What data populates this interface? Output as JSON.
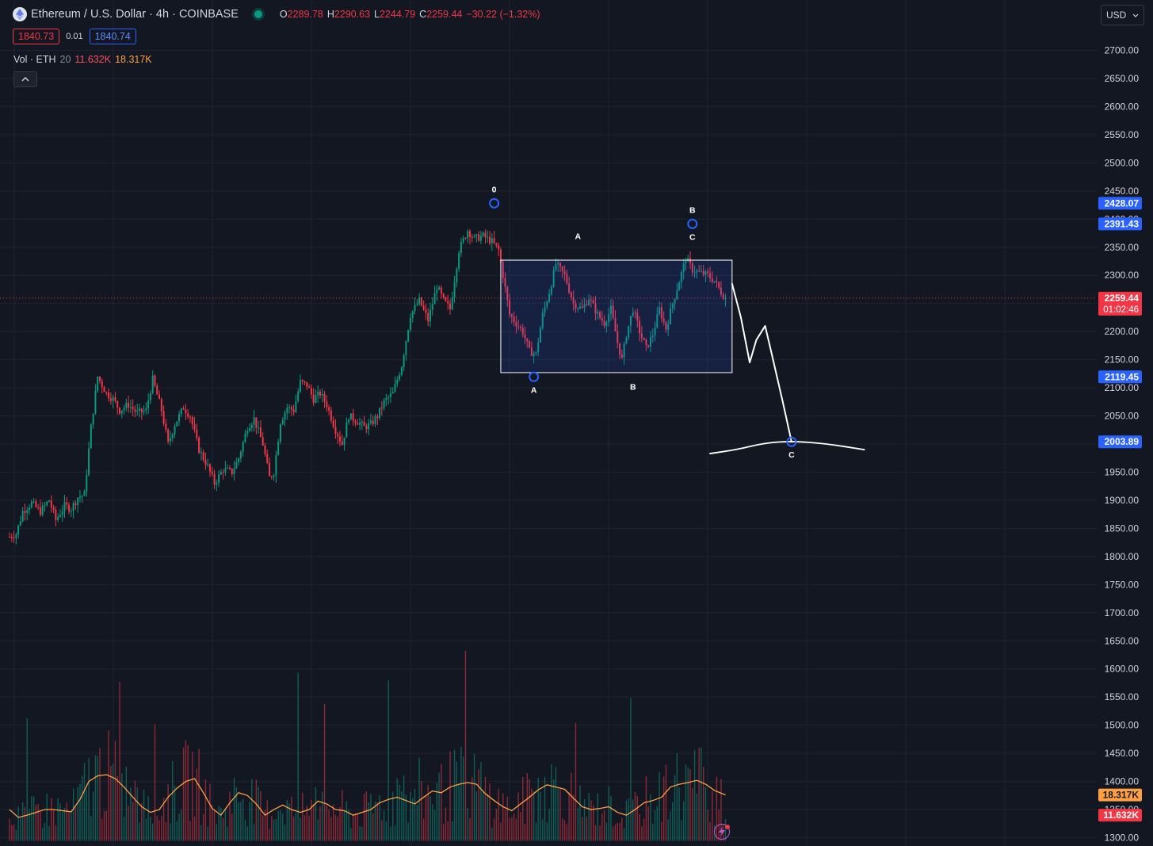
{
  "header": {
    "symbol_title": "Ethereum / U.S. Dollar · 4h · COINBASE",
    "ohlc": {
      "o_label": "O",
      "o_value": "2289.78",
      "h_label": "H",
      "h_value": "2290.63",
      "l_label": "L",
      "l_value": "2244.79",
      "c_label": "C",
      "c_value": "2259.44",
      "change": "−30.22 (−1.32%)"
    },
    "bid": "1840.73",
    "spread": "0.01",
    "ask": "1840.74",
    "currency": "USD"
  },
  "volume_legend": {
    "label": "Vol · ETH",
    "length": "20",
    "volume": "11.632K",
    "ma": "18.317K"
  },
  "colors": {
    "background": "#131722",
    "grid": "#1f2330",
    "up": "#089981",
    "down": "#f23645",
    "volume_ma": "#ff9f43",
    "accent": "#2962ff",
    "drawing": "#ffffff"
  },
  "chart_data": {
    "type": "candlestick",
    "y_ticks": [
      "2700.00",
      "2650.00",
      "2600.00",
      "2550.00",
      "2500.00",
      "2450.00",
      "2400.00",
      "2350.00",
      "2300.00",
      "2250.00",
      "2200.00",
      "2150.00",
      "2100.00",
      "2050.00",
      "2000.00",
      "1950.00",
      "1900.00",
      "1850.00",
      "1800.00",
      "1750.00",
      "1700.00",
      "1650.00",
      "1600.00",
      "1550.00",
      "1500.00",
      "1450.00",
      "1400.00",
      "1350.00",
      "1300.00"
    ],
    "ylim": [
      1300,
      2700
    ],
    "price_path": [
      [
        0,
        1835
      ],
      [
        3,
        1840
      ],
      [
        6,
        1880
      ],
      [
        10,
        1895
      ],
      [
        14,
        1880
      ],
      [
        18,
        1900
      ],
      [
        21,
        1865
      ],
      [
        25,
        1890
      ],
      [
        28,
        1885
      ],
      [
        31,
        1905
      ],
      [
        34,
        1910
      ],
      [
        37,
        2030
      ],
      [
        40,
        2120
      ],
      [
        44,
        2090
      ],
      [
        47,
        2080
      ],
      [
        50,
        2060
      ],
      [
        54,
        2070
      ],
      [
        58,
        2055
      ],
      [
        62,
        2060
      ],
      [
        65,
        2115
      ],
      [
        69,
        2060
      ],
      [
        72,
        2000
      ],
      [
        75,
        2035
      ],
      [
        79,
        2065
      ],
      [
        82,
        2050
      ],
      [
        86,
        1990
      ],
      [
        90,
        1960
      ],
      [
        93,
        1930
      ],
      [
        97,
        1955
      ],
      [
        101,
        1950
      ],
      [
        104,
        1975
      ],
      [
        108,
        2030
      ],
      [
        111,
        2045
      ],
      [
        115,
        2000
      ],
      [
        118,
        1940
      ],
      [
        120,
        1950
      ],
      [
        123,
        2040
      ],
      [
        126,
        2065
      ],
      [
        129,
        2060
      ],
      [
        132,
        2110
      ],
      [
        135,
        2105
      ],
      [
        138,
        2080
      ],
      [
        141,
        2090
      ],
      [
        144,
        2070
      ],
      [
        148,
        2025
      ],
      [
        151,
        2000
      ],
      [
        154,
        2050
      ],
      [
        158,
        2040
      ],
      [
        161,
        2030
      ],
      [
        164,
        2035
      ],
      [
        167,
        2050
      ],
      [
        170,
        2075
      ],
      [
        174,
        2090
      ],
      [
        178,
        2140
      ],
      [
        182,
        2230
      ],
      [
        186,
        2255
      ],
      [
        190,
        2220
      ],
      [
        194,
        2280
      ],
      [
        197,
        2255
      ],
      [
        200,
        2240
      ],
      [
        204,
        2345
      ],
      [
        208,
        2380
      ],
      [
        211,
        2365
      ],
      [
        215,
        2370
      ],
      [
        219,
        2360
      ],
      [
        222,
        2345
      ],
      [
        224,
        2300
      ],
      [
        227,
        2230
      ],
      [
        230,
        2215
      ],
      [
        233,
        2200
      ],
      [
        236,
        2165
      ],
      [
        239,
        2160
      ],
      [
        242,
        2230
      ],
      [
        245,
        2270
      ],
      [
        248,
        2320
      ],
      [
        252,
        2300
      ],
      [
        256,
        2250
      ],
      [
        260,
        2240
      ],
      [
        263,
        2260
      ],
      [
        267,
        2230
      ],
      [
        270,
        2215
      ],
      [
        273,
        2240
      ],
      [
        276,
        2180
      ],
      [
        278,
        2150
      ],
      [
        280,
        2195
      ],
      [
        283,
        2240
      ],
      [
        286,
        2200
      ],
      [
        289,
        2170
      ],
      [
        292,
        2195
      ],
      [
        295,
        2240
      ],
      [
        298,
        2205
      ],
      [
        301,
        2250
      ],
      [
        304,
        2290
      ],
      [
        307,
        2330
      ],
      [
        310,
        2310
      ],
      [
        313,
        2305
      ],
      [
        317,
        2300
      ],
      [
        320,
        2290
      ],
      [
        323,
        2270
      ],
      [
        325,
        2259.44
      ]
    ],
    "volume_ma": [
      [
        0,
        1350
      ],
      [
        4,
        1336
      ],
      [
        8,
        1340
      ],
      [
        12,
        1345
      ],
      [
        16,
        1350
      ],
      [
        20,
        1350
      ],
      [
        24,
        1348
      ],
      [
        28,
        1346
      ],
      [
        32,
        1368
      ],
      [
        36,
        1400
      ],
      [
        40,
        1410
      ],
      [
        44,
        1412
      ],
      [
        48,
        1405
      ],
      [
        52,
        1390
      ],
      [
        56,
        1372
      ],
      [
        60,
        1355
      ],
      [
        64,
        1345
      ],
      [
        68,
        1350
      ],
      [
        72,
        1372
      ],
      [
        76,
        1388
      ],
      [
        80,
        1400
      ],
      [
        84,
        1405
      ],
      [
        88,
        1380
      ],
      [
        92,
        1352
      ],
      [
        96,
        1340
      ],
      [
        100,
        1362
      ],
      [
        104,
        1380
      ],
      [
        108,
        1375
      ],
      [
        112,
        1360
      ],
      [
        116,
        1340
      ],
      [
        120,
        1350
      ],
      [
        124,
        1358
      ],
      [
        128,
        1350
      ],
      [
        132,
        1345
      ],
      [
        136,
        1350
      ],
      [
        140,
        1365
      ],
      [
        144,
        1360
      ],
      [
        148,
        1350
      ],
      [
        152,
        1348
      ],
      [
        156,
        1340
      ],
      [
        160,
        1345
      ],
      [
        164,
        1350
      ],
      [
        168,
        1362
      ],
      [
        172,
        1368
      ],
      [
        176,
        1372
      ],
      [
        180,
        1366
      ],
      [
        184,
        1360
      ],
      [
        188,
        1372
      ],
      [
        192,
        1383
      ],
      [
        196,
        1380
      ],
      [
        200,
        1390
      ],
      [
        204,
        1395
      ],
      [
        208,
        1398
      ],
      [
        212,
        1395
      ],
      [
        216,
        1378
      ],
      [
        220,
        1366
      ],
      [
        224,
        1355
      ],
      [
        228,
        1348
      ],
      [
        232,
        1360
      ],
      [
        236,
        1372
      ],
      [
        240,
        1385
      ],
      [
        244,
        1394
      ],
      [
        248,
        1390
      ],
      [
        252,
        1386
      ],
      [
        256,
        1370
      ],
      [
        260,
        1355
      ],
      [
        264,
        1350
      ],
      [
        268,
        1352
      ],
      [
        272,
        1355
      ],
      [
        276,
        1345
      ],
      [
        280,
        1340
      ],
      [
        284,
        1350
      ],
      [
        288,
        1362
      ],
      [
        292,
        1366
      ],
      [
        296,
        1372
      ],
      [
        300,
        1390
      ],
      [
        304,
        1395
      ],
      [
        308,
        1398
      ],
      [
        312,
        1402
      ],
      [
        316,
        1395
      ],
      [
        320,
        1384
      ],
      [
        325,
        1376
      ]
    ],
    "current_price": "2259.44",
    "countdown": "01:02:46",
    "price_tags": [
      {
        "label": "2428.07",
        "value": 2428.07
      },
      {
        "label": "2391.43",
        "value": 2391.43
      },
      {
        "label": "2119.45",
        "value": 2119.45
      },
      {
        "label": "2003.89",
        "value": 2003.89
      }
    ],
    "volume_tags": [
      {
        "label": "18.317K",
        "value": 1376
      },
      {
        "label": "11.632K",
        "value": 1340
      }
    ],
    "range_box": {
      "x_start": 223,
      "x_end": 328,
      "price_top": 2327,
      "price_bottom": 2127
    },
    "wave_labels": [
      {
        "label": "0",
        "x": 220,
        "price": 2428.07,
        "circle": true,
        "position": "above"
      },
      {
        "label": "A",
        "x": 238,
        "price": 2119.45,
        "circle": true,
        "position": "below"
      },
      {
        "label": "A",
        "x": 258,
        "price": 2345,
        "circle": false,
        "position": "above"
      },
      {
        "label": "B",
        "x": 283,
        "price": 2125,
        "circle": false,
        "position": "below"
      },
      {
        "label": "B",
        "x": 310,
        "price": 2391.43,
        "circle": true,
        "position": "above"
      },
      {
        "label": "C",
        "x": 310,
        "price": 2391.43,
        "circle": false,
        "position": "below"
      },
      {
        "label": "C",
        "x": 355,
        "price": 2003.89,
        "circle": true,
        "position": "below"
      }
    ],
    "projection_path": [
      [
        328,
        2285
      ],
      [
        332,
        2225
      ],
      [
        336,
        2145
      ],
      [
        339,
        2185
      ],
      [
        343,
        2210
      ],
      [
        346,
        2160
      ],
      [
        351,
        2075
      ],
      [
        355,
        2003.89
      ]
    ],
    "projection_curve": [
      [
        318,
        1983
      ],
      [
        330,
        1990
      ],
      [
        343,
        2002
      ],
      [
        355,
        2005
      ],
      [
        370,
        2001
      ],
      [
        388,
        1990
      ]
    ]
  }
}
